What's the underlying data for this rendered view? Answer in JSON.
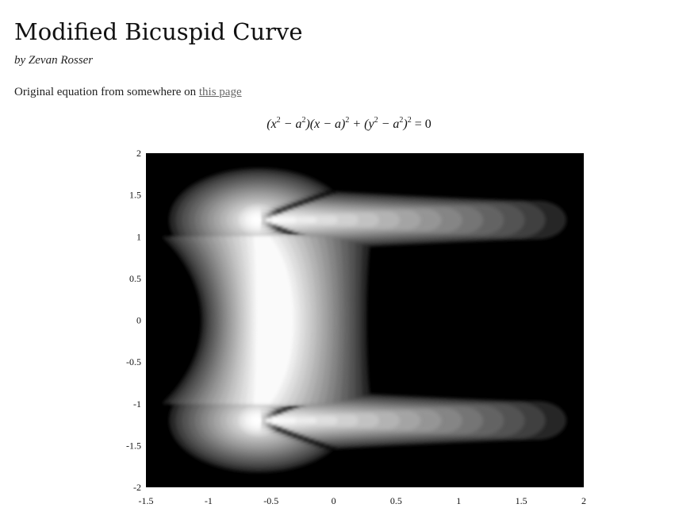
{
  "page": {
    "title": "Modified Bicuspid Curve",
    "byline": "by Zevan Rosser",
    "description_prefix": "Original equation from somewhere on ",
    "link_label": "this page",
    "equation": [
      "(x",
      "2",
      " − a",
      "2",
      ")(x − a)",
      "2",
      " + (y",
      "2",
      " − a",
      "2",
      ")",
      "2",
      " = 0"
    ]
  },
  "chart_data": {
    "type": "heatmap",
    "title": "",
    "xlabel": "",
    "ylabel": "",
    "xlim": [
      -1.5,
      2
    ],
    "ylim": [
      -2,
      2
    ],
    "x_ticks": [
      "-1.5",
      "-1",
      "-0.5",
      "0",
      "0.5",
      "1",
      "1.5",
      "2"
    ],
    "y_ticks": [
      "2",
      "1.5",
      "1",
      "0.5",
      "0",
      "-0.5",
      "-1",
      "-1.5",
      "-2"
    ],
    "colormap": [
      "#000000",
      "#ffffff"
    ],
    "background_color": "#000000",
    "bright_regions": [
      {
        "label": "upper lobe",
        "x": -0.6,
        "y": 1.2
      },
      {
        "label": "lower lobe",
        "x": -0.6,
        "y": -1.2
      }
    ],
    "saddle_point": {
      "x": -0.6,
      "y": 0
    },
    "arm_tips": [
      {
        "x": 1.75,
        "y": 1.2
      },
      {
        "x": 1.75,
        "y": -1.2
      }
    ]
  }
}
